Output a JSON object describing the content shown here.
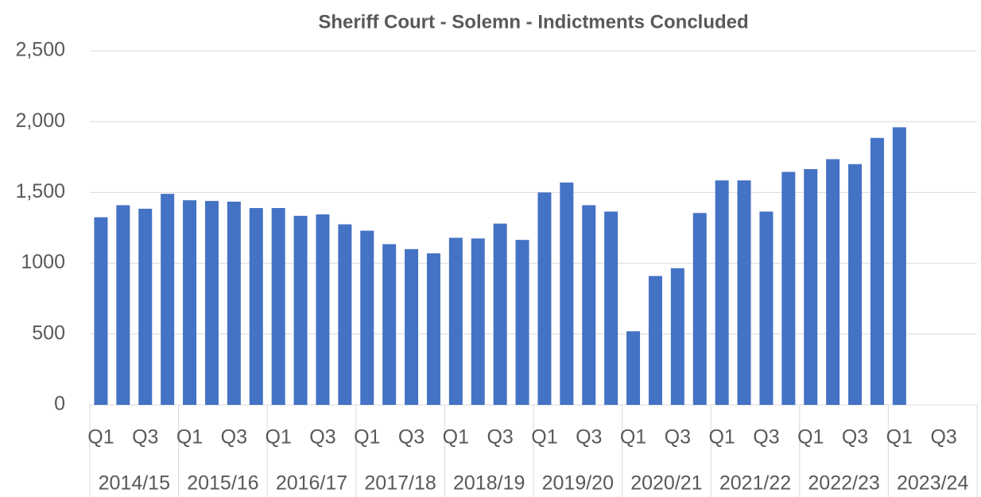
{
  "chart_data": {
    "type": "bar",
    "title": "Sheriff Court - Solemn - Indictments Concluded",
    "categories": [
      "Q1",
      null,
      "Q3",
      null,
      "Q1",
      null,
      "Q3",
      null,
      "Q1",
      null,
      "Q3",
      null,
      "Q1",
      null,
      "Q3",
      null,
      "Q1",
      null,
      "Q3",
      null,
      "Q1",
      null,
      "Q3",
      null,
      "Q1",
      null,
      "Q3",
      null,
      "Q1",
      null,
      "Q3",
      null,
      "Q1",
      null,
      "Q3",
      null,
      "Q1",
      null,
      "Q3",
      null
    ],
    "groups": [
      "2014/15",
      "2015/16",
      "2016/17",
      "2017/18",
      "2018/19",
      "2019/20",
      "2020/21",
      "2021/22",
      "2022/23",
      "2023/24"
    ],
    "values": [
      1325,
      1410,
      1385,
      1490,
      1445,
      1440,
      1435,
      1390,
      1390,
      1335,
      1345,
      1275,
      1230,
      1135,
      1100,
      1070,
      1180,
      1175,
      1280,
      1165,
      1500,
      1570,
      1410,
      1365,
      520,
      910,
      965,
      1355,
      1585,
      1585,
      1365,
      1645,
      1665,
      1735,
      1700,
      1885,
      1960,
      null,
      null,
      null
    ],
    "color": "#4472c4",
    "ylim": [
      0,
      2500
    ],
    "yticks": [
      0,
      500,
      1000,
      {
        "value": 1500,
        "label": "1,500"
      },
      {
        "value": 2000,
        "label": "2,000"
      },
      {
        "value": 2500,
        "label": "2,500"
      }
    ],
    "grid": true
  }
}
